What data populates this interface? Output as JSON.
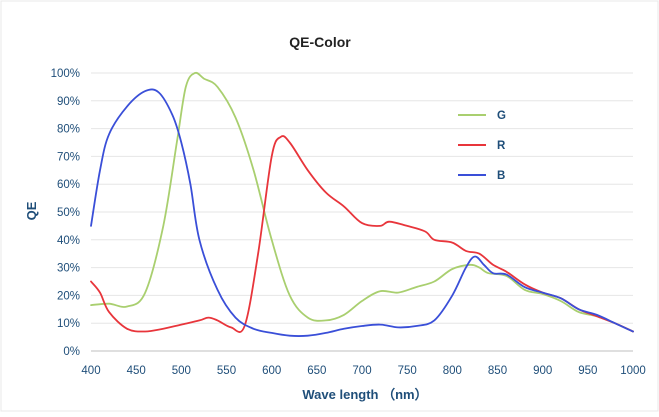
{
  "chart_data": {
    "type": "line",
    "title": "QE-Color",
    "xlabel": "Wave length （nm）",
    "ylabel": "QE",
    "xlim": [
      400,
      1000
    ],
    "ylim": [
      0,
      100
    ],
    "x_ticks": [
      400,
      450,
      500,
      550,
      600,
      650,
      700,
      750,
      800,
      850,
      900,
      950,
      1000
    ],
    "y_ticks": [
      0,
      10,
      20,
      30,
      40,
      50,
      60,
      70,
      80,
      90,
      100
    ],
    "y_tick_labels": [
      "0%",
      "10%",
      "20%",
      "30%",
      "40%",
      "50%",
      "60%",
      "70%",
      "80%",
      "90%",
      "100%"
    ],
    "grid": "horizontal",
    "legend_position": "right",
    "series": [
      {
        "name": "G",
        "color": "#a9cf6f",
        "points": [
          [
            400,
            16.5
          ],
          [
            420,
            17
          ],
          [
            440,
            16
          ],
          [
            460,
            21
          ],
          [
            480,
            45
          ],
          [
            495,
            75
          ],
          [
            505,
            95
          ],
          [
            515,
            100
          ],
          [
            525,
            98
          ],
          [
            540,
            95
          ],
          [
            560,
            84
          ],
          [
            580,
            65
          ],
          [
            600,
            40
          ],
          [
            620,
            20
          ],
          [
            640,
            12
          ],
          [
            660,
            11
          ],
          [
            680,
            13
          ],
          [
            700,
            18
          ],
          [
            720,
            21.5
          ],
          [
            740,
            21
          ],
          [
            760,
            23
          ],
          [
            780,
            25
          ],
          [
            800,
            29.5
          ],
          [
            820,
            31
          ],
          [
            830,
            30
          ],
          [
            840,
            28
          ],
          [
            860,
            27
          ],
          [
            880,
            22
          ],
          [
            900,
            20.5
          ],
          [
            920,
            18
          ],
          [
            940,
            14
          ],
          [
            960,
            12.5
          ],
          [
            980,
            10
          ],
          [
            1000,
            7
          ]
        ]
      },
      {
        "name": "R",
        "color": "#e8353b",
        "points": [
          [
            400,
            25
          ],
          [
            410,
            21
          ],
          [
            420,
            14
          ],
          [
            440,
            8
          ],
          [
            460,
            7
          ],
          [
            480,
            8
          ],
          [
            500,
            9.5
          ],
          [
            520,
            11
          ],
          [
            530,
            12
          ],
          [
            540,
            11
          ],
          [
            555,
            8.5
          ],
          [
            570,
            9
          ],
          [
            585,
            35
          ],
          [
            600,
            70
          ],
          [
            610,
            77
          ],
          [
            620,
            75
          ],
          [
            640,
            65
          ],
          [
            660,
            57
          ],
          [
            680,
            52
          ],
          [
            700,
            46
          ],
          [
            720,
            45
          ],
          [
            730,
            46.5
          ],
          [
            750,
            45
          ],
          [
            770,
            43
          ],
          [
            780,
            40
          ],
          [
            800,
            39
          ],
          [
            815,
            36
          ],
          [
            830,
            35
          ],
          [
            845,
            31
          ],
          [
            860,
            28.5
          ],
          [
            880,
            24
          ],
          [
            900,
            21
          ],
          [
            920,
            19
          ],
          [
            940,
            15
          ],
          [
            960,
            12.5
          ],
          [
            980,
            10
          ],
          [
            1000,
            7
          ]
        ]
      },
      {
        "name": "B",
        "color": "#3a4fd8",
        "points": [
          [
            400,
            45
          ],
          [
            410,
            65
          ],
          [
            420,
            78
          ],
          [
            440,
            88
          ],
          [
            460,
            93.5
          ],
          [
            475,
            93
          ],
          [
            490,
            85
          ],
          [
            500,
            75
          ],
          [
            510,
            60
          ],
          [
            520,
            40
          ],
          [
            540,
            22
          ],
          [
            560,
            12
          ],
          [
            580,
            8
          ],
          [
            600,
            6.5
          ],
          [
            620,
            5.5
          ],
          [
            640,
            5.5
          ],
          [
            660,
            6.5
          ],
          [
            680,
            8
          ],
          [
            700,
            9
          ],
          [
            720,
            9.5
          ],
          [
            740,
            8.5
          ],
          [
            760,
            9
          ],
          [
            780,
            11
          ],
          [
            800,
            20
          ],
          [
            815,
            30
          ],
          [
            825,
            34
          ],
          [
            835,
            31
          ],
          [
            845,
            28
          ],
          [
            860,
            27.5
          ],
          [
            880,
            23
          ],
          [
            900,
            21
          ],
          [
            920,
            19
          ],
          [
            940,
            15
          ],
          [
            960,
            13
          ],
          [
            980,
            10
          ],
          [
            1000,
            7
          ]
        ]
      }
    ]
  }
}
